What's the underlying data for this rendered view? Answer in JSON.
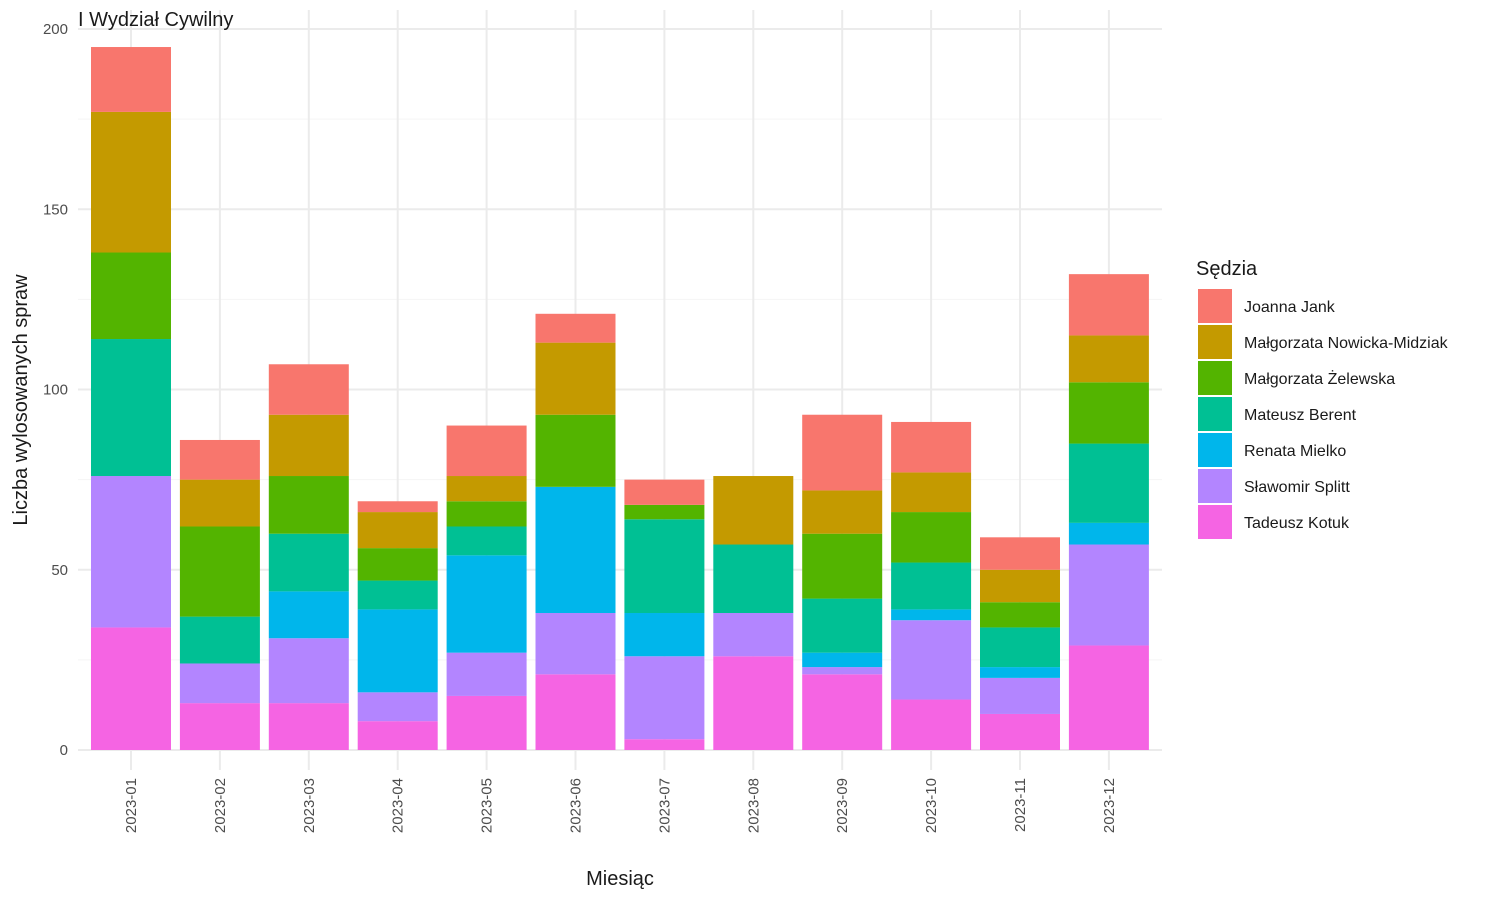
{
  "chart_data": {
    "type": "bar",
    "stacked": true,
    "title": "I Wydział Cywilny",
    "xlabel": "Miesiąc",
    "ylabel": "Liczba wylosowanych spraw",
    "ylim": [
      0,
      200
    ],
    "yticks": [
      0,
      50,
      100,
      150,
      200
    ],
    "grid": true,
    "legend_title": "Sędzia",
    "legend_position": "right",
    "categories": [
      "2023-01",
      "2023-02",
      "2023-03",
      "2023-04",
      "2023-05",
      "2023-06",
      "2023-07",
      "2023-08",
      "2023-09",
      "2023-10",
      "2023-11",
      "2023-12"
    ],
    "series": [
      {
        "name": "Tadeusz Kotuk",
        "color": "#F564E3",
        "values": [
          34,
          13,
          13,
          8,
          15,
          21,
          3,
          26,
          21,
          14,
          10,
          29
        ]
      },
      {
        "name": "Sławomir Splitt",
        "color": "#B385FF",
        "values": [
          42,
          11,
          18,
          8,
          12,
          17,
          23,
          12,
          2,
          22,
          10,
          28
        ]
      },
      {
        "name": "Renata Mielko",
        "color": "#00B6EB",
        "values": [
          0,
          0,
          13,
          23,
          27,
          35,
          12,
          0,
          4,
          3,
          3,
          6
        ]
      },
      {
        "name": "Mateusz Berent",
        "color": "#00C094",
        "values": [
          38,
          13,
          16,
          8,
          8,
          0,
          26,
          19,
          15,
          13,
          11,
          22
        ]
      },
      {
        "name": "Małgorzata Żelewska",
        "color": "#53B400",
        "values": [
          24,
          25,
          16,
          9,
          7,
          20,
          4,
          0,
          18,
          14,
          7,
          17
        ]
      },
      {
        "name": "Małgorzata Nowicka-Midziak",
        "color": "#C49A00",
        "values": [
          39,
          13,
          17,
          10,
          7,
          20,
          0,
          19,
          12,
          11,
          9,
          13
        ]
      },
      {
        "name": "Joanna Jank",
        "color": "#F8766D",
        "values": [
          18,
          11,
          14,
          3,
          14,
          8,
          7,
          0,
          21,
          14,
          9,
          17
        ]
      }
    ],
    "legend_order": [
      "Joanna Jank",
      "Małgorzata Nowicka-Midziak",
      "Małgorzata Żelewska",
      "Mateusz Berent",
      "Renata Mielko",
      "Sławomir Splitt",
      "Tadeusz Kotuk"
    ]
  }
}
